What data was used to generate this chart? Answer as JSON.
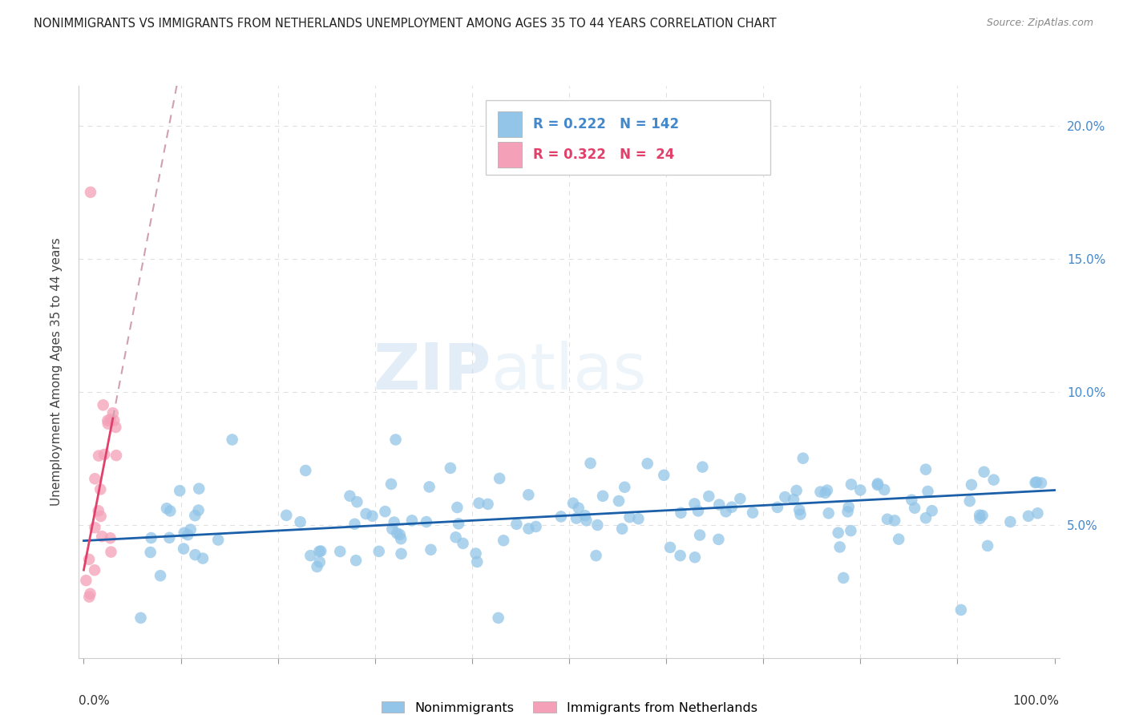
{
  "title": "NONIMMIGRANTS VS IMMIGRANTS FROM NETHERLANDS UNEMPLOYMENT AMONG AGES 35 TO 44 YEARS CORRELATION CHART",
  "source": "Source: ZipAtlas.com",
  "ylabel": "Unemployment Among Ages 35 to 44 years",
  "x_range": [
    0.0,
    1.0
  ],
  "y_range": [
    0.0,
    0.215
  ],
  "legend_blue_r": "0.222",
  "legend_blue_n": "142",
  "legend_pink_r": "0.322",
  "legend_pink_n": "24",
  "blue_color": "#92c5e8",
  "pink_color": "#f4a0b8",
  "blue_line_color": "#1a5fa8",
  "pink_line_color": "#e0406a",
  "pink_dashed_color": "#d0a0b0",
  "watermark_zip": "ZIP",
  "watermark_atlas": "atlas",
  "grid_color": "#e0e0e0"
}
